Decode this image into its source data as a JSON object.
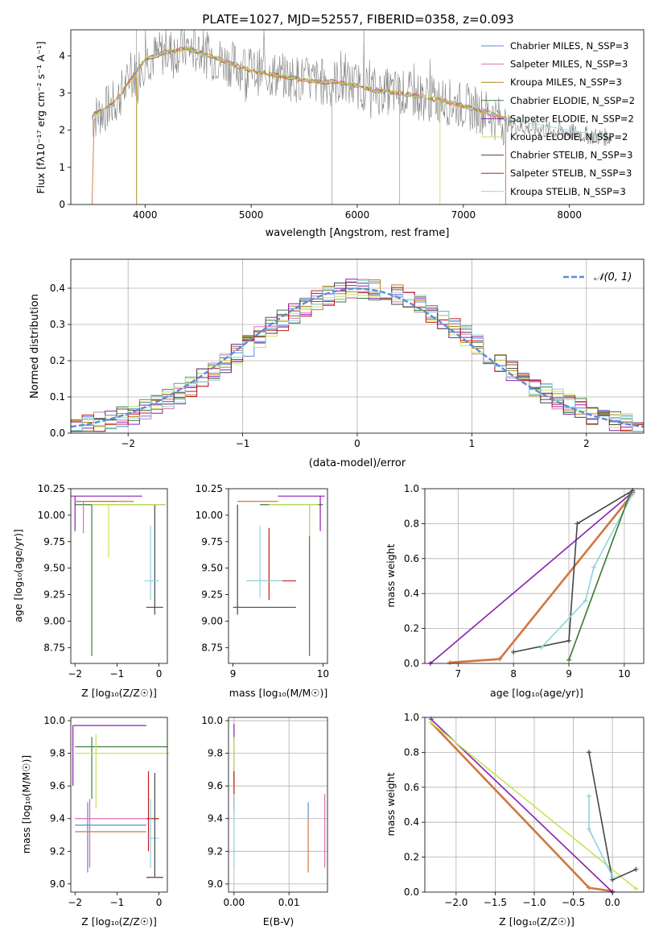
{
  "colors": {
    "chabrier_miles": "#5c8ad8",
    "salpeter_miles": "#dc6fb4",
    "kroupa_miles": "#b38419",
    "chabrier_elodie": "#3d7a3d",
    "salpeter_elodie": "#8b1fb0",
    "kroupa_elodie": "#c8e35a",
    "chabrier_stelib": "#454545",
    "salpeter_stelib": "#c41a1a",
    "kroupa_stelib": "#8fd3e0",
    "orange": "#d2763f",
    "data": "#808080"
  },
  "spectrum": {
    "title": "PLATE=1027, MJD=52557, FIBERID=0358, z=0.093",
    "xlabel": "wavelength [Angstrom, rest frame]",
    "ylabel": "Flux [fλ10⁻¹⁷ erg cm⁻² s⁻¹ A⁻¹]",
    "xticks": [
      "4000",
      "5000",
      "6000",
      "7000",
      "8000"
    ],
    "yticks": [
      "0",
      "1",
      "2",
      "3",
      "4"
    ],
    "legend": [
      {
        "label": "Chabrier MILES, N_SSP=3",
        "color": "#5c8ad8"
      },
      {
        "label": "Salpeter MILES, N_SSP=3",
        "color": "#dc6fb4"
      },
      {
        "label": "Kroupa MILES, N_SSP=3",
        "color": "#b38419"
      },
      {
        "label": "Chabrier ELODIE, N_SSP=2",
        "color": "#3d7a3d"
      },
      {
        "label": "Salpeter ELODIE, N_SSP=2",
        "color": "#8b1fb0"
      },
      {
        "label": "Kroupa ELODIE, N_SSP=2",
        "color": "#c8e35a"
      },
      {
        "label": "Chabrier STELIB, N_SSP=3",
        "color": "#454545"
      },
      {
        "label": "Salpeter STELIB, N_SSP=3",
        "color": "#c41a1a"
      },
      {
        "label": "Kroupa STELIB, N_SSP=3",
        "color": "#8fd3e0"
      }
    ]
  },
  "residuals": {
    "xlabel": "(data-model)/error",
    "ylabel": "Normed distribution",
    "xticks": [
      "−2",
      "−1",
      "0",
      "1",
      "2"
    ],
    "yticks": [
      "0.0",
      "0.1",
      "0.2",
      "0.3",
      "0.4"
    ],
    "legend_label": "𝒩(0, 1)"
  },
  "panel_z_age": {
    "xlabel": "Z [log₁₀(Z/Z☉)]",
    "ylabel": "age  [log₁₀(age/yr)]",
    "xticks": [
      "−2",
      "−1",
      "0"
    ],
    "yticks": [
      "8.75",
      "9.00",
      "9.25",
      "9.50",
      "9.75",
      "10.00",
      "10.25"
    ]
  },
  "panel_mass_age": {
    "xlabel": "mass [log₁₀(M/M☉)]",
    "xticks": [
      "9",
      "10"
    ],
    "yticks": [
      "8.75",
      "9.00",
      "9.25",
      "9.50",
      "9.75",
      "10.00",
      "10.25"
    ]
  },
  "panel_age_weight": {
    "xlabel": "age  [log₁₀(age/yr)]",
    "ylabel": "mass weight",
    "xticks": [
      "7",
      "8",
      "9",
      "10"
    ],
    "yticks": [
      "0.0",
      "0.2",
      "0.4",
      "0.6",
      "0.8",
      "1.0"
    ]
  },
  "panel_z_mass": {
    "xlabel": "Z [log₁₀(Z/Z☉)]",
    "ylabel": "mass [log₁₀(M/M☉)]",
    "xticks": [
      "−2",
      "−1",
      "0"
    ],
    "yticks": [
      "9.0",
      "9.2",
      "9.4",
      "9.6",
      "9.8",
      "10.0"
    ]
  },
  "panel_ebv_mass": {
    "xlabel": "E(B-V)",
    "xticks": [
      "0.00",
      "0.01"
    ],
    "yticks": [
      "9.0",
      "9.2",
      "9.4",
      "9.6",
      "9.8",
      "10.0"
    ]
  },
  "panel_z_weight": {
    "xlabel": "Z [log₁₀(Z/Z☉)]",
    "ylabel": "mass weight",
    "xticks": [
      "−2.0",
      "−1.5",
      "−1.0",
      "−0.5",
      "0.0"
    ],
    "yticks": [
      "0.0",
      "0.2",
      "0.4",
      "0.6",
      "0.8",
      "1.0"
    ]
  },
  "chart_data": [
    {
      "type": "line",
      "title": "PLATE=1027, MJD=52557, FIBERID=0358, z=0.093",
      "xlabel": "wavelength [Angstrom, rest frame]",
      "ylabel": "Flux [fλ10⁻¹⁷ erg cm⁻² s⁻¹ A⁻¹]",
      "xlim": [
        3300,
        8700
      ],
      "ylim": [
        0,
        4.7
      ],
      "x": [
        3500,
        3700,
        3900,
        4000,
        4200,
        4400,
        4600,
        4800,
        5000,
        5200,
        5400,
        5600,
        5800,
        6000,
        6200,
        6400,
        6600,
        6800,
        7000,
        7200,
        7400,
        7600,
        7800,
        8000,
        8200,
        8400
      ],
      "series": [
        {
          "name": "data",
          "values": [
            2.3,
            2.7,
            3.5,
            3.9,
            4.1,
            4.2,
            4.0,
            3.8,
            3.6,
            3.5,
            3.4,
            3.3,
            3.3,
            3.2,
            3.05,
            3.0,
            2.9,
            2.8,
            2.65,
            2.5,
            2.2,
            2.05,
            2.0,
            1.95,
            1.85,
            1.8
          ]
        },
        {
          "name": "model",
          "values": [
            2.4,
            2.7,
            3.5,
            3.9,
            4.1,
            4.2,
            4.0,
            3.8,
            3.6,
            3.5,
            3.4,
            3.3,
            3.3,
            3.2,
            3.05,
            3.0,
            2.9,
            2.8,
            2.65,
            2.5,
            2.3,
            2.1,
            2.05,
            1.95,
            1.85,
            1.8
          ]
        }
      ],
      "legend": [
        "Chabrier MILES, N_SSP=3",
        "Salpeter MILES, N_SSP=3",
        "Kroupa MILES, N_SSP=3",
        "Chabrier ELODIE, N_SSP=2",
        "Salpeter ELODIE, N_SSP=2",
        "Kroupa ELODIE, N_SSP=2",
        "Chabrier STELIB, N_SSP=3",
        "Salpeter STELIB, N_SSP=3",
        "Kroupa STELIB, N_SSP=3"
      ],
      "legend_position": "upper right"
    },
    {
      "type": "bar",
      "xlabel": "(data-model)/error",
      "ylabel": "Normed distribution",
      "xlim": [
        -2.5,
        2.5
      ],
      "ylim": [
        0,
        0.48
      ],
      "bins": [
        -2.4,
        -2.2,
        -2.0,
        -1.8,
        -1.6,
        -1.4,
        -1.2,
        -1.0,
        -0.8,
        -0.6,
        -0.4,
        -0.2,
        0.0,
        0.2,
        0.4,
        0.6,
        0.8,
        1.0,
        1.2,
        1.4,
        1.6,
        1.8,
        2.0,
        2.2,
        2.4
      ],
      "values": [
        0.04,
        0.05,
        0.06,
        0.08,
        0.11,
        0.15,
        0.19,
        0.22,
        0.27,
        0.32,
        0.36,
        0.39,
        0.41,
        0.39,
        0.35,
        0.3,
        0.25,
        0.2,
        0.16,
        0.12,
        0.09,
        0.07,
        0.05,
        0.04,
        0.03
      ],
      "legend": [
        "𝒩(0, 1)"
      ],
      "legend_position": "upper right",
      "grid": true
    },
    {
      "type": "scatter",
      "panel": "age_vs_z",
      "xlabel": "Z [log₁₀(Z/Z☉)]",
      "ylabel": "age  [log₁₀(age/yr)]",
      "xlim": [
        -2.1,
        0.2
      ],
      "ylim": [
        8.6,
        10.25
      ],
      "points": [
        {
          "x": -1.6,
          "y": 10.1,
          "color": "#3d7a3d"
        },
        {
          "x": -0.1,
          "y": 9.13,
          "color": "#454545"
        },
        {
          "x": -0.2,
          "y": 9.38,
          "color": "#8fd3e0"
        },
        {
          "x": -1.2,
          "y": 10.18,
          "color": "#8b1fb0"
        },
        {
          "x": -1.8,
          "y": 10.1,
          "color": "#dc6fb4"
        },
        {
          "x": -1.2,
          "y": 10.1,
          "color": "#c8e35a"
        }
      ],
      "grid": false
    },
    {
      "type": "scatter",
      "panel": "age_vs_mass",
      "xlabel": "mass [log₁₀(M/M☉)]",
      "xlim": [
        8.95,
        10.05
      ],
      "ylim": [
        8.6,
        10.25
      ],
      "points": [
        {
          "x": 9.85,
          "y": 10.1,
          "color": "#3d7a3d"
        },
        {
          "x": 9.4,
          "y": 9.38,
          "color": "#c41a1a"
        },
        {
          "x": 9.3,
          "y": 9.38,
          "color": "#8fd3e0"
        },
        {
          "x": 9.3,
          "y": 9.13,
          "color": "#454545"
        },
        {
          "x": 9.9,
          "y": 10.18,
          "color": "#8b1fb0"
        },
        {
          "x": 9.6,
          "y": 10.1,
          "color": "#c8e35a"
        }
      ],
      "grid": false
    },
    {
      "type": "line",
      "panel": "mass_weight_vs_age",
      "xlabel": "age  [log₁₀(age/yr)]",
      "ylabel": "mass weight",
      "xlim": [
        6.4,
        10.35
      ],
      "ylim": [
        0,
        1
      ],
      "series": [
        {
          "x": [
            6.5,
            10.15
          ],
          "y": [
            0.0,
            0.98
          ],
          "color": "#8b1fb0"
        },
        {
          "x": [
            6.85,
            7.75,
            10.15
          ],
          "y": [
            0.005,
            0.025,
            0.97
          ],
          "color": "#d2763f"
        },
        {
          "x": [
            8.0,
            9.0,
            9.15,
            10.15
          ],
          "y": [
            0.065,
            0.13,
            0.8,
            0.99
          ],
          "color": "#454545"
        },
        {
          "x": [
            8.5,
            9.3,
            9.45,
            10.15
          ],
          "y": [
            0.09,
            0.36,
            0.55,
            0.97
          ],
          "color": "#8fd3e0"
        },
        {
          "x": [
            9.0,
            10.1
          ],
          "y": [
            0.02,
            0.97
          ],
          "color": "#c8e35a"
        },
        {
          "x": [
            9.0,
            10.1
          ],
          "y": [
            0.02,
            0.97
          ],
          "color": "#3d7a3d"
        }
      ],
      "grid": true
    },
    {
      "type": "scatter",
      "panel": "mass_vs_z",
      "xlabel": "Z [log₁₀(Z/Z☉)]",
      "ylabel": "mass [log₁₀(M/M☉)]",
      "xlim": [
        -2.1,
        0.2
      ],
      "ylim": [
        8.95,
        10.02
      ],
      "points": [
        {
          "x": -1.6,
          "y": 9.84,
          "color": "#3d7a3d"
        },
        {
          "x": -2.0,
          "y": 9.97,
          "color": "#8b1fb0"
        },
        {
          "x": -1.5,
          "y": 9.8,
          "color": "#c8e35a"
        },
        {
          "x": -1.8,
          "y": 9.36,
          "color": "#5c8ad8"
        },
        {
          "x": -1.7,
          "y": 9.32,
          "color": "#d2763f"
        },
        {
          "x": -0.2,
          "y": 9.4,
          "color": "#c41a1a"
        },
        {
          "x": -0.2,
          "y": 9.28,
          "color": "#8fd3e0"
        },
        {
          "x": -0.1,
          "y": 9.04,
          "color": "#454545"
        }
      ],
      "grid": false
    },
    {
      "type": "scatter",
      "panel": "mass_vs_ebv",
      "xlabel": "E(B-V)",
      "xlim": [
        -0.001,
        0.017
      ],
      "ylim": [
        8.95,
        10.02
      ],
      "points": [
        {
          "x": 0.0,
          "y": 9.9,
          "color": "#8b1fb0"
        },
        {
          "x": 0.0,
          "y": 9.65,
          "color": "#c41a1a"
        },
        {
          "x": 0.0,
          "y": 9.4,
          "color": "#8fd3e0"
        },
        {
          "x": 0.0135,
          "y": 9.2,
          "color": "#d2763f"
        },
        {
          "x": 0.0135,
          "y": 9.45,
          "color": "#5c8ad8"
        },
        {
          "x": 0.0165,
          "y": 9.3,
          "color": "#dc6fb4"
        }
      ],
      "grid": true
    },
    {
      "type": "line",
      "panel": "mass_weight_vs_z",
      "xlabel": "Z [log₁₀(Z/Z☉)]",
      "ylabel": "mass weight",
      "xlim": [
        -2.4,
        0.4
      ],
      "ylim": [
        0,
        1
      ],
      "series": [
        {
          "x": [
            -2.32,
            -0.3,
            0.0
          ],
          "y": [
            0.97,
            0.025,
            0.005
          ],
          "color": "#d2763f"
        },
        {
          "x": [
            -2.32,
            0.0
          ],
          "y": [
            0.99,
            0.0
          ],
          "color": "#8b1fb0"
        },
        {
          "x": [
            -2.32,
            0.3
          ],
          "y": [
            0.97,
            0.02
          ],
          "color": "#c8e35a"
        },
        {
          "x": [
            -0.3,
            0.0,
            0.3
          ],
          "y": [
            0.8,
            0.07,
            0.13
          ],
          "color": "#454545"
        },
        {
          "x": [
            -0.3,
            -0.3,
            0.0
          ],
          "y": [
            0.55,
            0.36,
            0.09
          ],
          "color": "#8fd3e0"
        }
      ],
      "grid": true
    }
  ]
}
